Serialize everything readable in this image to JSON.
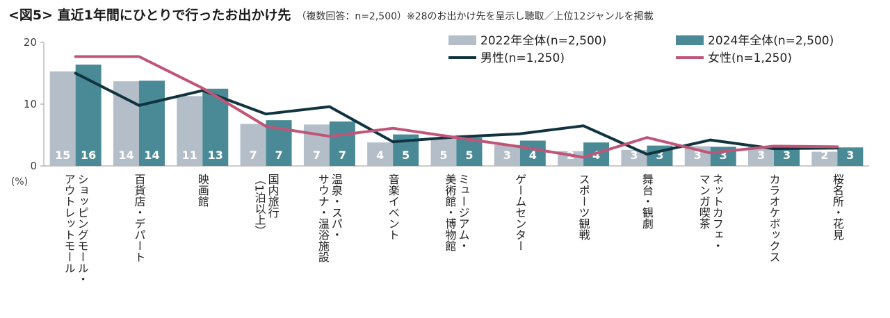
{
  "chart_data": {
    "type": "bar",
    "title": "<図5> 直近1年間にひとりで行ったお出かけ先",
    "subtitle": "（複数回答：n=2,500）※28のお出かけ先を呈示し聴取／上位12ジャンルを掲載",
    "ylabel": "(%)",
    "ylim": [
      0,
      20
    ],
    "yticks": [
      "0",
      "10",
      "20"
    ],
    "categories": [
      "ショッピングモール・アウトレットモール",
      "百貨店・デパート",
      "映画館",
      "国内旅行（1泊以上）",
      "温泉・スパ・サウナ・温浴施設",
      "音楽イベント",
      "ミュージアム・美術館・博物館",
      "ゲームセンター",
      "スポーツ観戦",
      "舞台・観劇",
      "ネットカフェ・マンガ喫茶",
      "カラオケボックス",
      "桜名所・花見"
    ],
    "category_lines": [
      [
        "ショッピングモール・",
        "アウトレットモール"
      ],
      [
        "百貨店・デパート"
      ],
      [
        "映画館"
      ],
      [
        "国内旅行",
        "（1泊以上）"
      ],
      [
        "温泉・スパ・",
        "サウナ・温浴施設"
      ],
      [
        "音楽イベント"
      ],
      [
        "ミュージアム・",
        "美術館・博物館"
      ],
      [
        "ゲームセンター"
      ],
      [
        "スポーツ観戦"
      ],
      [
        "舞台・観劇"
      ],
      [
        "ネットカフェ・",
        "マンガ喫茶"
      ],
      [
        "カラオケボックス"
      ],
      [
        "桜名所・花見"
      ]
    ],
    "series": [
      {
        "name": "2022年全体(n=2,500)",
        "kind": "bar",
        "color": "#b4bec9",
        "values": [
          15.3,
          13.7,
          11.3,
          6.8,
          6.7,
          3.8,
          4.6,
          3.4,
          2.4,
          2.6,
          3.2,
          3.1,
          2.3
        ],
        "labels": [
          "15",
          "14",
          "11",
          "7",
          "7",
          "4",
          "5",
          "3",
          "2",
          "3",
          "3",
          "3",
          "2"
        ]
      },
      {
        "name": "2024年全体(n=2,500)",
        "kind": "bar",
        "color": "#4a8a96",
        "values": [
          16.4,
          13.8,
          12.5,
          7.4,
          7.2,
          5.1,
          4.6,
          4.1,
          3.8,
          3.3,
          3.1,
          3.0,
          3.0
        ],
        "labels": [
          "16",
          "14",
          "13",
          "7",
          "7",
          "5",
          "5",
          "4",
          "4",
          "3",
          "3",
          "3",
          "3"
        ]
      },
      {
        "name": "男性(n=1,250)",
        "kind": "line",
        "color": "#10343f",
        "values": [
          15.0,
          9.8,
          12.2,
          8.4,
          9.6,
          3.9,
          4.7,
          5.2,
          6.5,
          1.9,
          4.2,
          2.8,
          2.9
        ]
      },
      {
        "name": "女性(n=1,250)",
        "kind": "line",
        "color": "#c05577",
        "values": [
          17.7,
          17.7,
          12.6,
          6.4,
          4.8,
          6.1,
          4.6,
          3.1,
          1.4,
          4.6,
          2.1,
          3.2,
          3.1
        ]
      }
    ],
    "legend_position": "top-right",
    "grid": false
  }
}
